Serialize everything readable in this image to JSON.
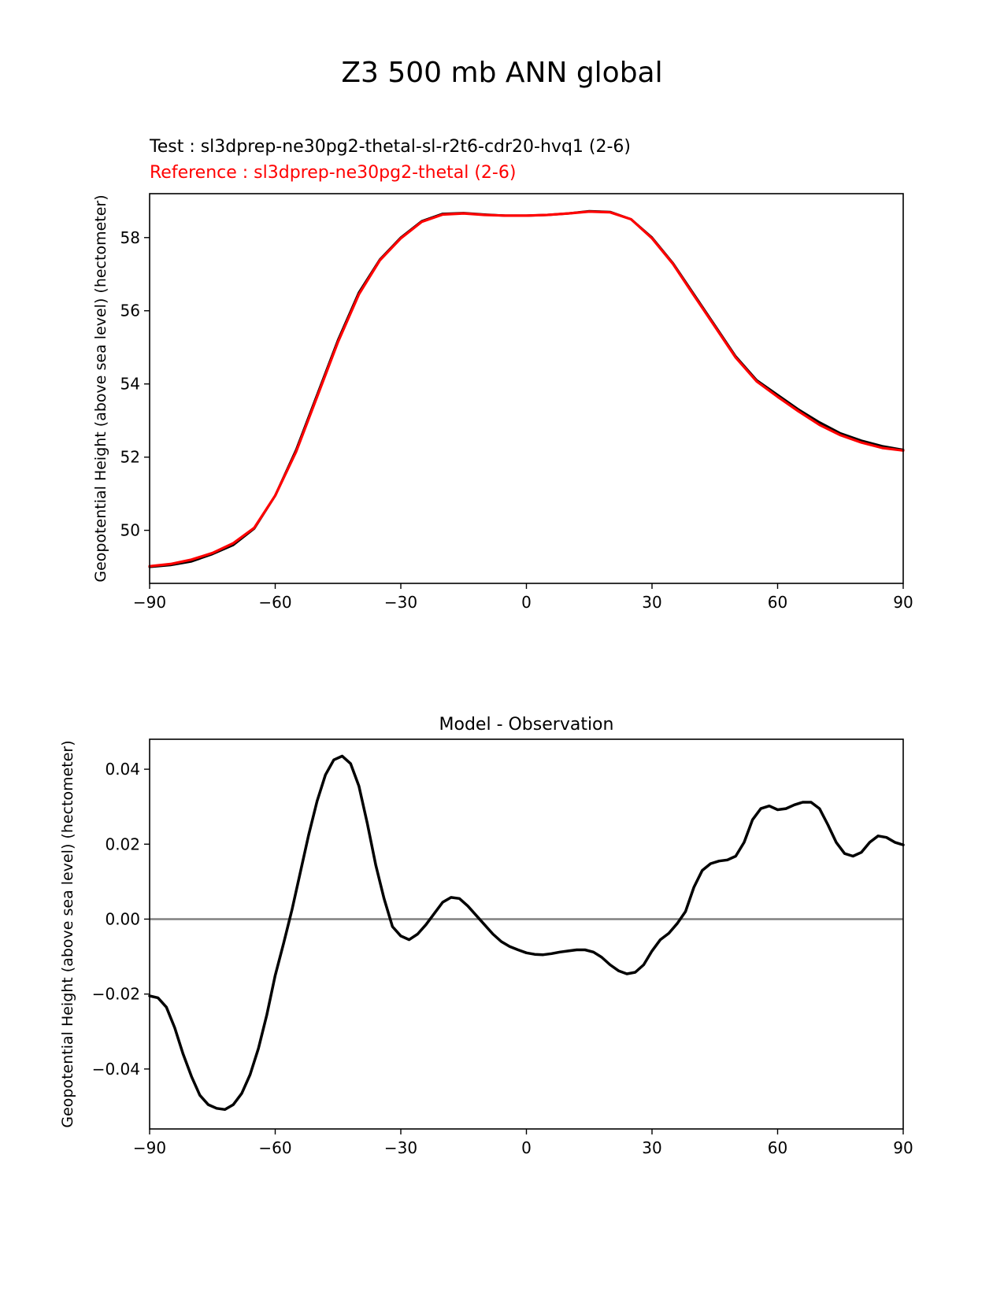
{
  "figure": {
    "suptitle": "Z3 500 mb ANN global",
    "test_label": "Test : sl3dprep-ne30pg2-thetal-sl-r2t6-cdr20-hvq1 (2-6)",
    "reference_label": "Reference : sl3dprep-ne30pg2-thetal (2-6)"
  },
  "colors": {
    "test": "#000000",
    "reference": "#ff0000",
    "zero_line": "#808080",
    "diff": "#000000"
  },
  "chart_data": [
    {
      "type": "line",
      "title": "",
      "xlabel": "",
      "ylabel": "Geopotential Height (above sea level) (hectometer)",
      "xlim": [
        -90,
        90
      ],
      "ylim": [
        48.55,
        59.2
      ],
      "xticks": [
        -90,
        -60,
        -30,
        0,
        30,
        60,
        90
      ],
      "xtick_labels": [
        "−90",
        "−60",
        "−30",
        "0",
        "30",
        "60",
        "90"
      ],
      "yticks": [
        50,
        52,
        54,
        56,
        58
      ],
      "ytick_labels": [
        "50",
        "52",
        "54",
        "56",
        "58"
      ],
      "x": [
        -90,
        -85,
        -80,
        -75,
        -70,
        -65,
        -60,
        -55,
        -50,
        -45,
        -40,
        -35,
        -30,
        -25,
        -20,
        -15,
        -10,
        -5,
        0,
        5,
        10,
        15,
        20,
        25,
        30,
        35,
        40,
        45,
        50,
        55,
        60,
        65,
        70,
        75,
        80,
        85,
        90
      ],
      "series": [
        {
          "name": "Test",
          "color": "#000000",
          "values": [
            49.0,
            49.05,
            49.15,
            49.35,
            49.6,
            50.05,
            50.95,
            52.2,
            53.7,
            55.2,
            56.5,
            57.4,
            58.0,
            58.45,
            58.65,
            58.67,
            58.63,
            58.6,
            58.6,
            58.62,
            58.66,
            58.72,
            58.7,
            58.5,
            58.0,
            57.3,
            56.45,
            55.6,
            54.75,
            54.1,
            53.7,
            53.3,
            52.95,
            52.65,
            52.45,
            52.3,
            52.2
          ]
        },
        {
          "name": "Reference",
          "color": "#ff0000",
          "values": [
            49.02,
            49.08,
            49.2,
            49.38,
            49.65,
            50.07,
            50.95,
            52.15,
            53.65,
            55.15,
            56.45,
            57.38,
            57.98,
            58.43,
            58.63,
            58.66,
            58.62,
            58.6,
            58.6,
            58.62,
            58.66,
            58.71,
            58.69,
            58.5,
            57.98,
            57.28,
            56.42,
            55.57,
            54.72,
            54.07,
            53.65,
            53.25,
            52.88,
            52.6,
            52.4,
            52.25,
            52.18
          ]
        }
      ]
    },
    {
      "type": "line",
      "title": "Model - Observation",
      "xlabel": "",
      "ylabel": "Geopotential Height (above sea level) (hectometer)",
      "xlim": [
        -90,
        90
      ],
      "ylim": [
        -0.056,
        0.048
      ],
      "xticks": [
        -90,
        -60,
        -30,
        0,
        30,
        60,
        90
      ],
      "xtick_labels": [
        "−90",
        "−60",
        "−30",
        "0",
        "30",
        "60",
        "90"
      ],
      "yticks": [
        -0.04,
        -0.02,
        0.0,
        0.02,
        0.04
      ],
      "ytick_labels": [
        "−0.04",
        "−0.02",
        "0.00",
        "0.02",
        "0.04"
      ],
      "zero_line": 0.0,
      "x": [
        -90,
        -88,
        -86,
        -84,
        -82,
        -80,
        -78,
        -76,
        -74,
        -72,
        -70,
        -68,
        -66,
        -64,
        -62,
        -60,
        -58,
        -56,
        -54,
        -52,
        -50,
        -48,
        -46,
        -44,
        -42,
        -40,
        -38,
        -36,
        -34,
        -32,
        -30,
        -28,
        -26,
        -24,
        -22,
        -20,
        -18,
        -16,
        -14,
        -12,
        -10,
        -8,
        -6,
        -4,
        -2,
        0,
        2,
        4,
        6,
        8,
        10,
        12,
        14,
        16,
        18,
        20,
        22,
        24,
        26,
        28,
        30,
        32,
        34,
        36,
        38,
        40,
        42,
        44,
        46,
        48,
        50,
        52,
        54,
        56,
        58,
        60,
        62,
        64,
        66,
        68,
        70,
        72,
        74,
        76,
        78,
        80,
        82,
        84,
        86,
        88,
        90
      ],
      "series": [
        {
          "name": "Model - Observation",
          "color": "#000000",
          "values": [
            -0.0205,
            -0.021,
            -0.0235,
            -0.029,
            -0.036,
            -0.042,
            -0.047,
            -0.0495,
            -0.0505,
            -0.0508,
            -0.0495,
            -0.0465,
            -0.0415,
            -0.0345,
            -0.0255,
            -0.015,
            -0.0065,
            0.0025,
            0.0125,
            0.0225,
            0.0315,
            0.0385,
            0.0425,
            0.0435,
            0.0415,
            0.0355,
            0.0255,
            0.0145,
            0.0055,
            -0.002,
            -0.0045,
            -0.0055,
            -0.004,
            -0.0015,
            0.0015,
            0.0045,
            0.0058,
            0.0055,
            0.0035,
            0.001,
            -0.0015,
            -0.004,
            -0.006,
            -0.0073,
            -0.0082,
            -0.009,
            -0.0094,
            -0.0095,
            -0.0092,
            -0.0088,
            -0.0085,
            -0.0082,
            -0.0082,
            -0.0088,
            -0.0102,
            -0.0122,
            -0.0138,
            -0.0146,
            -0.0142,
            -0.0122,
            -0.0085,
            -0.0055,
            -0.0038,
            -0.0012,
            0.002,
            0.0085,
            0.013,
            0.0148,
            0.0155,
            0.0158,
            0.0168,
            0.0205,
            0.0265,
            0.0295,
            0.0302,
            0.0292,
            0.0295,
            0.0305,
            0.0312,
            0.0312,
            0.0295,
            0.0252,
            0.0205,
            0.0175,
            0.0168,
            0.0178,
            0.0205,
            0.0222,
            0.0218,
            0.0205,
            0.0198
          ]
        }
      ]
    }
  ]
}
